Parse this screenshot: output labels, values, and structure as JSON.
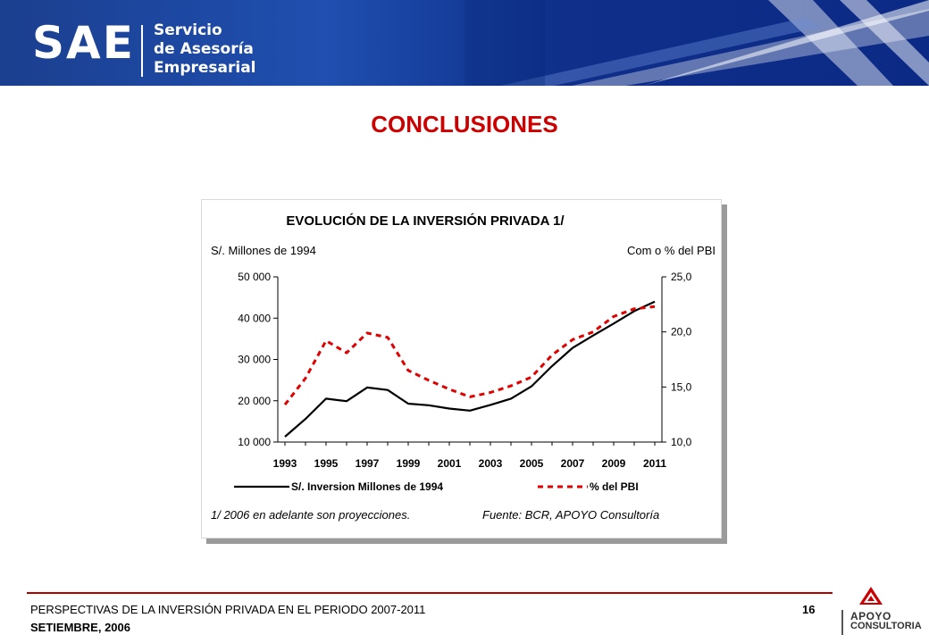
{
  "header": {
    "logo": "SAE",
    "subtitle_lines": [
      "Servicio",
      "de Asesoría",
      "Empresarial"
    ]
  },
  "slide": {
    "title": "CONCLUSIONES"
  },
  "chart_data": {
    "type": "line",
    "title": "EVOLUCIÓN DE LA INVERSIÓN PRIVADA 1/",
    "left_axis_label": "S/. Millones de 1994",
    "right_axis_label": "Com o % del PBI",
    "x": [
      1993,
      1994,
      1995,
      1996,
      1997,
      1998,
      1999,
      2000,
      2001,
      2002,
      2003,
      2004,
      2005,
      2006,
      2007,
      2008,
      2009,
      2010,
      2011
    ],
    "x_tick_labels": [
      "1993",
      "1995",
      "1997",
      "1999",
      "2001",
      "2003",
      "2005",
      "2007",
      "2009",
      "2011"
    ],
    "left_ylim": [
      10000,
      50000
    ],
    "left_ticks": [
      "10 000",
      "20 000",
      "30 000",
      "40 000",
      "50 000"
    ],
    "right_ylim": [
      10.0,
      25.0
    ],
    "right_ticks": [
      "10,0",
      "15,0",
      "20,0",
      "25,0"
    ],
    "series": [
      {
        "name": "S/. Inversion Millones de 1994",
        "axis": "left",
        "style": "solid",
        "color": "#000000",
        "values": [
          11300,
          15600,
          20500,
          19900,
          23200,
          22600,
          19300,
          18900,
          18100,
          17600,
          19000,
          20500,
          23500,
          28400,
          32800,
          35800,
          38700,
          41700,
          44000
        ]
      },
      {
        "name": "% del PBI",
        "axis": "right",
        "style": "dashed",
        "color": "#e00000",
        "values": [
          13.4,
          15.8,
          19.2,
          18.1,
          19.9,
          19.5,
          16.5,
          15.6,
          14.8,
          14.1,
          14.5,
          15.1,
          15.9,
          17.9,
          19.3,
          20.0,
          21.4,
          22.1,
          22.3
        ]
      }
    ],
    "note": "1/ 2006 en adelante son proyecciones.",
    "source": "Fuente: BCR, APOYO Consultoría",
    "legend_position": "bottom"
  },
  "footer": {
    "line1": "PERSPECTIVAS DE LA INVERSIÓN PRIVADA EN EL PERIODO 2007-2011",
    "line2": "SETIEMBRE, 2006",
    "page_number": "16",
    "brand_line1": "APOYO",
    "brand_line2": "CONSULTORIA"
  }
}
